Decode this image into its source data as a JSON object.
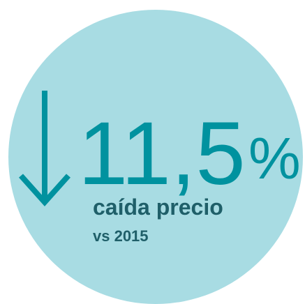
{
  "stat": {
    "number": "11,5",
    "unit": "%",
    "label": "caída precio",
    "sub": "vs 2015"
  }
}
